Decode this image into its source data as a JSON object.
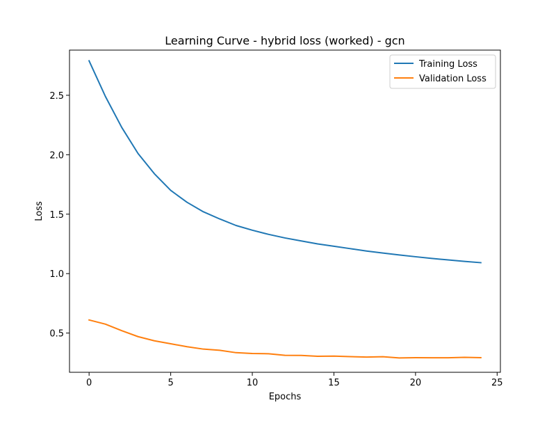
{
  "chart_data": {
    "type": "line",
    "title": "Learning Curve - hybrid loss (worked) - gcn",
    "xlabel": "Epochs",
    "ylabel": "Loss",
    "xlim": [
      -1.2,
      25.2
    ],
    "ylim": [
      0.17,
      2.88
    ],
    "xticks": [
      0,
      5,
      10,
      15,
      20,
      25
    ],
    "yticks": [
      0.5,
      1.0,
      1.5,
      2.0,
      2.5
    ],
    "xtick_labels": [
      "0",
      "5",
      "10",
      "15",
      "20",
      "25"
    ],
    "ytick_labels": [
      "0.5",
      "1.0",
      "1.5",
      "2.0",
      "2.5"
    ],
    "grid": false,
    "legend_position": "top-right",
    "x": [
      0,
      1,
      2,
      3,
      4,
      5,
      6,
      7,
      8,
      9,
      10,
      11,
      12,
      13,
      14,
      15,
      16,
      17,
      18,
      19,
      20,
      21,
      22,
      23,
      24
    ],
    "series": [
      {
        "name": "Training Loss",
        "color": "#1f77b4",
        "values": [
          2.79,
          2.49,
          2.23,
          2.01,
          1.84,
          1.7,
          1.6,
          1.52,
          1.46,
          1.405,
          1.365,
          1.33,
          1.3,
          1.275,
          1.25,
          1.23,
          1.21,
          1.19,
          1.173,
          1.157,
          1.142,
          1.128,
          1.115,
          1.103,
          1.092
        ]
      },
      {
        "name": "Validation Loss",
        "color": "#ff7f0e",
        "values": [
          0.61,
          0.575,
          0.52,
          0.47,
          0.435,
          0.41,
          0.385,
          0.365,
          0.355,
          0.335,
          0.328,
          0.326,
          0.313,
          0.312,
          0.305,
          0.306,
          0.302,
          0.298,
          0.301,
          0.291,
          0.293,
          0.292,
          0.292,
          0.296,
          0.293
        ]
      }
    ]
  }
}
